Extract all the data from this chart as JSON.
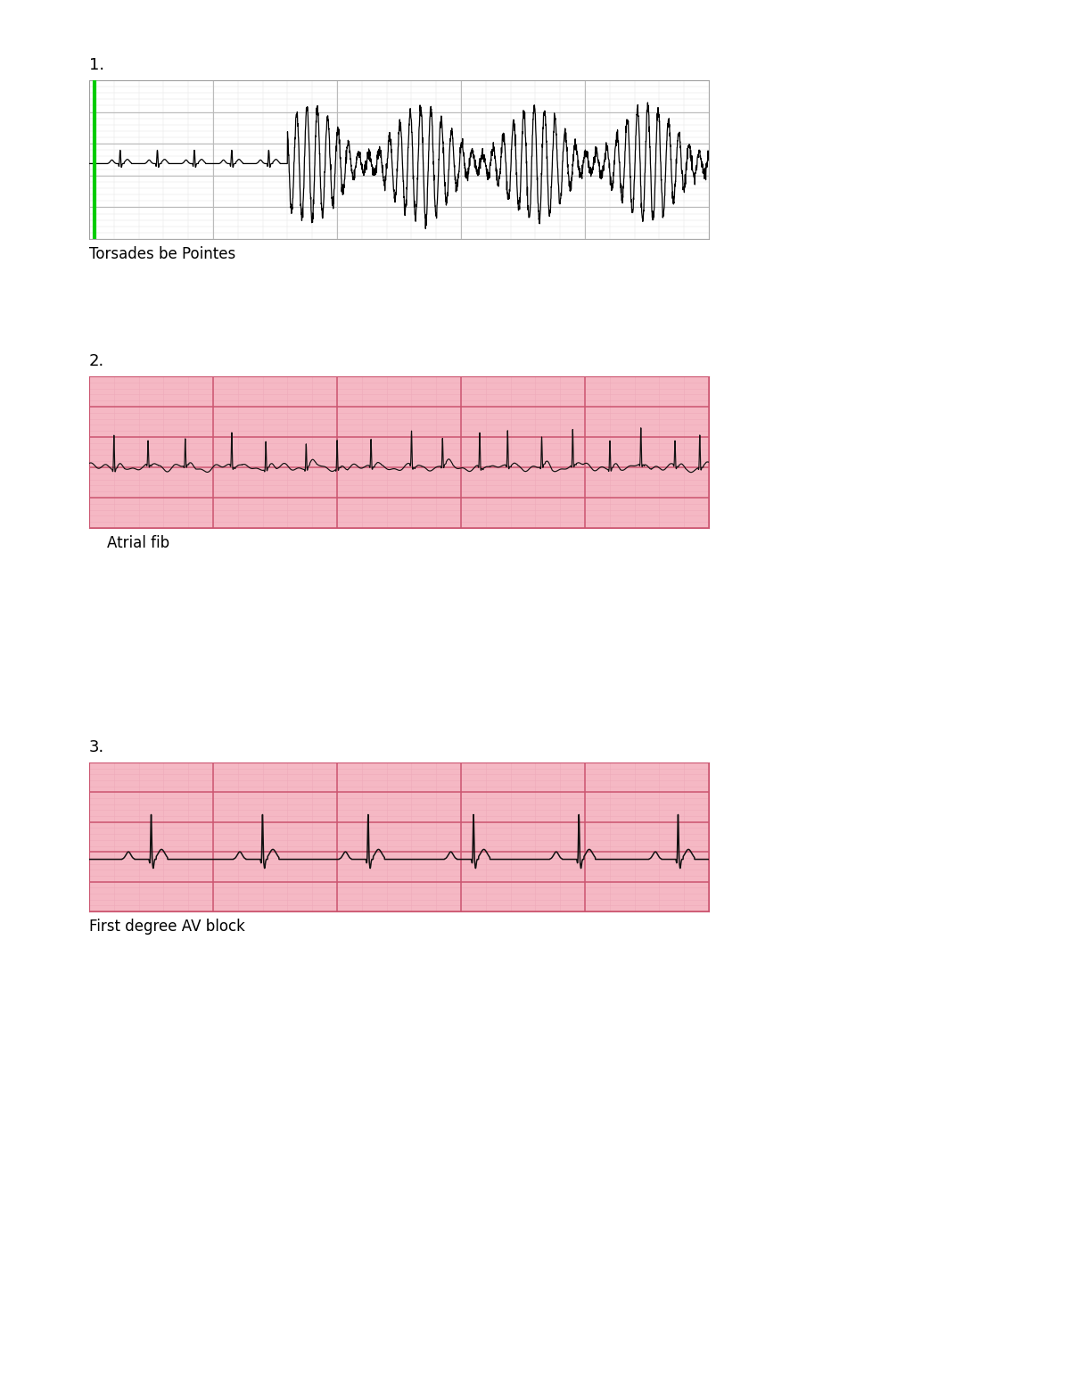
{
  "background_color": "#ffffff",
  "fig_width": 12.0,
  "fig_height": 15.53,
  "label1": "1.",
  "label2": "2.",
  "label3": "3.",
  "caption1": "Torsades be Pointes",
  "caption2": "Atrial fib",
  "caption3": "First degree AV block",
  "ecg1_bg": "#ffffff",
  "ecg1_grid_major": "#bbbbbb",
  "ecg1_grid_minor": "#e0e0e0",
  "ecg1_line": "#000000",
  "ecg2_bg": "#f5b8c4",
  "ecg2_grid_major": "#cc5570",
  "ecg2_grid_minor": "#eeaabb",
  "ecg2_line": "#111111",
  "ecg3_bg": "#f5b8c4",
  "ecg3_grid_major": "#cc5570",
  "ecg3_grid_minor": "#eeaabb",
  "ecg3_line": "#111111",
  "caption_fontsize": 12,
  "label_fontsize": 13,
  "green_line_color": "#00cc00"
}
